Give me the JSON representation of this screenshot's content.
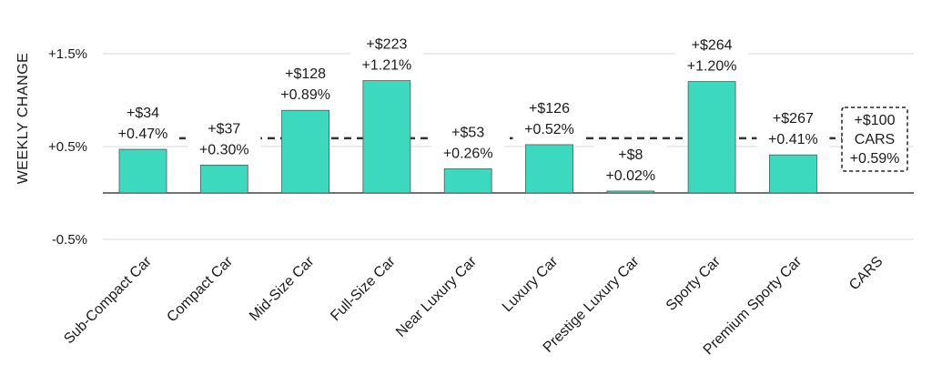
{
  "chart_data": {
    "type": "bar",
    "ylabel": "WEEKLY CHANGE",
    "ylim": [
      -0.6,
      1.7
    ],
    "yticks": [
      {
        "value": 1.5,
        "label": "+1.5%"
      },
      {
        "value": 0.5,
        "label": "+0.5%"
      },
      {
        "value": -0.5,
        "label": "-0.5%"
      }
    ],
    "grid": true,
    "categories": [
      "Sub-Compact Car",
      "Compact Car",
      "Mid-Size Car",
      "Full-Size Car",
      "Near Luxury Car",
      "Luxury Car",
      "Prestige Luxury Car",
      "Sporty Car",
      "Premium Sporty Car",
      "CARS"
    ],
    "values": [
      0.47,
      0.3,
      0.89,
      1.21,
      0.26,
      0.52,
      0.02,
      1.2,
      0.41,
      null
    ],
    "dollar_labels": [
      "+$34",
      "+$37",
      "+$128",
      "+$223",
      "+$53",
      "+$126",
      "+$8",
      "+$264",
      "+$267",
      "+$100"
    ],
    "percent_labels": [
      "+0.47%",
      "+0.30%",
      "+0.89%",
      "+1.21%",
      "+0.26%",
      "+0.52%",
      "+0.02%",
      "+1.20%",
      "+0.41%",
      "+0.59%"
    ],
    "average": {
      "value": 0.59,
      "category_label": "CARS",
      "dollar_label": "+$100",
      "percent_label": "+0.59%"
    }
  },
  "colors": {
    "bar": "#3dd9be",
    "bar_edge": "#555555",
    "grid": "#d9d9d9",
    "zero_line": "#444444",
    "average_line": "#333333",
    "text": "#1a1a1a",
    "label_bg": "#ffffff"
  }
}
